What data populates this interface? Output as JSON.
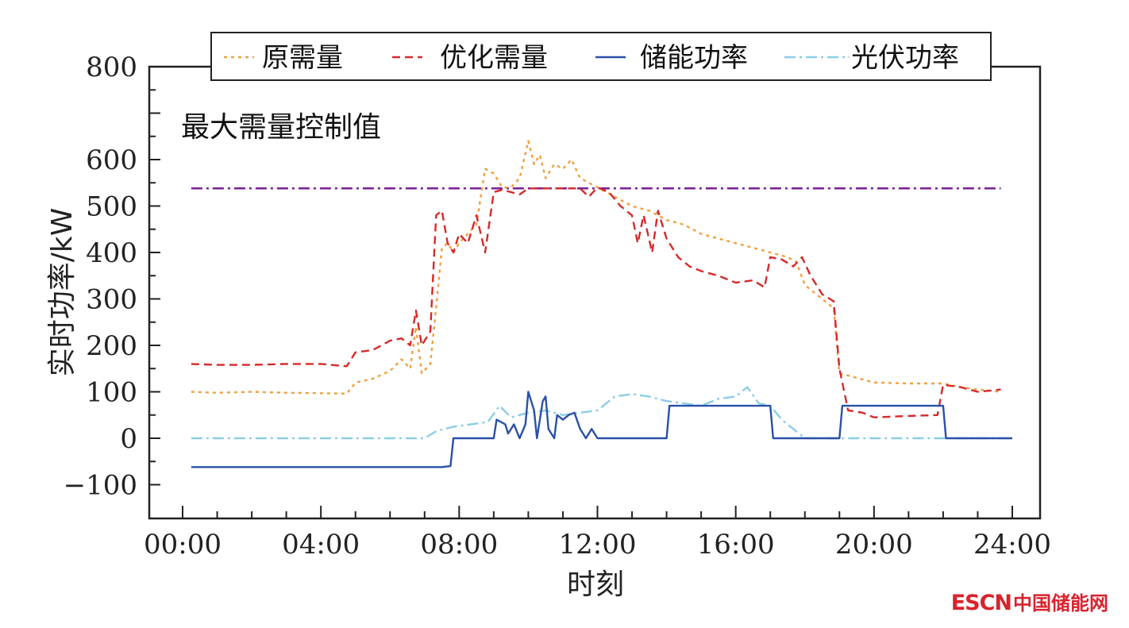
{
  "chart_data": {
    "type": "line",
    "title": "",
    "xlabel": "时刻",
    "ylabel": "实时功率/kW",
    "xlim": [
      "00:00",
      "24:00"
    ],
    "ylim": [
      -150,
      800
    ],
    "x_ticks": [
      "00:00",
      "04:00",
      "08:00",
      "12:00",
      "16:00",
      "20:00",
      "24:00"
    ],
    "y_ticks": [
      "800",
      "600",
      "500",
      "400",
      "300",
      "200",
      "100",
      "0",
      "−100"
    ],
    "grid": false,
    "legend": {
      "placement": "top",
      "boxed": true
    },
    "annotation": {
      "text": "最大需量控制值",
      "value": 538
    },
    "series": [
      {
        "name": "原需量",
        "color": "#f0a040",
        "dash": "4,5",
        "points": [
          [
            "00:15",
            100
          ],
          [
            "01:00",
            98
          ],
          [
            "02:00",
            100
          ],
          [
            "03:00",
            98
          ],
          [
            "04:00",
            97
          ],
          [
            "04:45",
            96
          ],
          [
            "05:00",
            120
          ],
          [
            "05:30",
            128
          ],
          [
            "06:00",
            145
          ],
          [
            "06:20",
            170
          ],
          [
            "06:35",
            150
          ],
          [
            "06:45",
            240
          ],
          [
            "06:55",
            140
          ],
          [
            "07:10",
            160
          ],
          [
            "07:20",
            280
          ],
          [
            "07:30",
            410
          ],
          [
            "07:40",
            420
          ],
          [
            "07:50",
            400
          ],
          [
            "08:00",
            420
          ],
          [
            "08:15",
            440
          ],
          [
            "08:30",
            460
          ],
          [
            "08:45",
            580
          ],
          [
            "09:00",
            570
          ],
          [
            "09:15",
            540
          ],
          [
            "09:30",
            540
          ],
          [
            "09:45",
            560
          ],
          [
            "10:00",
            640
          ],
          [
            "10:10",
            590
          ],
          [
            "10:20",
            610
          ],
          [
            "10:30",
            560
          ],
          [
            "10:45",
            590
          ],
          [
            "11:00",
            580
          ],
          [
            "11:15",
            600
          ],
          [
            "11:30",
            560
          ],
          [
            "11:45",
            550
          ],
          [
            "12:00",
            540
          ],
          [
            "12:30",
            520
          ],
          [
            "13:00",
            500
          ],
          [
            "13:30",
            490
          ],
          [
            "14:00",
            470
          ],
          [
            "14:30",
            460
          ],
          [
            "15:00",
            440
          ],
          [
            "15:30",
            430
          ],
          [
            "16:00",
            420
          ],
          [
            "16:30",
            410
          ],
          [
            "17:00",
            400
          ],
          [
            "17:30",
            390
          ],
          [
            "17:45",
            380
          ],
          [
            "18:00",
            330
          ],
          [
            "18:30",
            300
          ],
          [
            "18:50",
            280
          ],
          [
            "19:00",
            140
          ],
          [
            "19:30",
            130
          ],
          [
            "20:00",
            120
          ],
          [
            "21:00",
            118
          ],
          [
            "22:00",
            118
          ],
          [
            "22:30",
            110
          ],
          [
            "23:00",
            105
          ],
          [
            "23:40",
            100
          ]
        ]
      },
      {
        "name": "优化需量",
        "color": "#d42a2a",
        "dash": "10,6",
        "points": [
          [
            "00:15",
            160
          ],
          [
            "01:00",
            158
          ],
          [
            "02:00",
            158
          ],
          [
            "03:00",
            160
          ],
          [
            "04:00",
            160
          ],
          [
            "04:45",
            155
          ],
          [
            "05:00",
            185
          ],
          [
            "05:30",
            190
          ],
          [
            "06:00",
            210
          ],
          [
            "06:20",
            215
          ],
          [
            "06:35",
            200
          ],
          [
            "06:45",
            275
          ],
          [
            "06:55",
            200
          ],
          [
            "07:10",
            230
          ],
          [
            "07:20",
            480
          ],
          [
            "07:30",
            490
          ],
          [
            "07:40",
            420
          ],
          [
            "07:50",
            400
          ],
          [
            "08:00",
            440
          ],
          [
            "08:15",
            420
          ],
          [
            "08:30",
            480
          ],
          [
            "08:45",
            400
          ],
          [
            "09:00",
            530
          ],
          [
            "09:15",
            535
          ],
          [
            "09:30",
            530
          ],
          [
            "09:45",
            525
          ],
          [
            "10:00",
            538
          ],
          [
            "10:30",
            538
          ],
          [
            "11:00",
            538
          ],
          [
            "11:30",
            538
          ],
          [
            "11:45",
            520
          ],
          [
            "12:00",
            540
          ],
          [
            "12:20",
            530
          ],
          [
            "12:40",
            500
          ],
          [
            "13:00",
            480
          ],
          [
            "13:10",
            420
          ],
          [
            "13:20",
            480
          ],
          [
            "13:35",
            400
          ],
          [
            "13:45",
            490
          ],
          [
            "14:00",
            430
          ],
          [
            "14:20",
            390
          ],
          [
            "14:40",
            370
          ],
          [
            "15:00",
            360
          ],
          [
            "15:30",
            350
          ],
          [
            "16:00",
            335
          ],
          [
            "16:30",
            340
          ],
          [
            "16:50",
            325
          ],
          [
            "17:00",
            390
          ],
          [
            "17:20",
            385
          ],
          [
            "17:40",
            370
          ],
          [
            "17:55",
            390
          ],
          [
            "18:10",
            350
          ],
          [
            "18:30",
            310
          ],
          [
            "18:50",
            295
          ],
          [
            "19:00",
            150
          ],
          [
            "19:15",
            60
          ],
          [
            "19:40",
            55
          ],
          [
            "20:00",
            45
          ],
          [
            "21:00",
            48
          ],
          [
            "21:50",
            50
          ],
          [
            "22:00",
            115
          ],
          [
            "22:30",
            110
          ],
          [
            "23:00",
            100
          ],
          [
            "23:40",
            105
          ]
        ]
      },
      {
        "name": "储能功率",
        "color": "#2a50a8",
        "dash": "",
        "points": [
          [
            "00:15",
            -62
          ],
          [
            "02:00",
            -62
          ],
          [
            "04:00",
            -62
          ],
          [
            "06:00",
            -62
          ],
          [
            "07:30",
            -62
          ],
          [
            "07:45",
            -60
          ],
          [
            "07:50",
            0
          ],
          [
            "08:30",
            0
          ],
          [
            "09:00",
            0
          ],
          [
            "09:05",
            40
          ],
          [
            "09:20",
            30
          ],
          [
            "09:25",
            10
          ],
          [
            "09:35",
            30
          ],
          [
            "09:45",
            0
          ],
          [
            "09:55",
            30
          ],
          [
            "10:00",
            100
          ],
          [
            "10:10",
            60
          ],
          [
            "10:15",
            0
          ],
          [
            "10:25",
            80
          ],
          [
            "10:30",
            90
          ],
          [
            "10:35",
            20
          ],
          [
            "10:45",
            0
          ],
          [
            "10:50",
            50
          ],
          [
            "11:00",
            40
          ],
          [
            "11:10",
            50
          ],
          [
            "11:20",
            55
          ],
          [
            "11:30",
            20
          ],
          [
            "11:40",
            0
          ],
          [
            "11:50",
            20
          ],
          [
            "12:00",
            0
          ],
          [
            "13:00",
            0
          ],
          [
            "14:00",
            0
          ],
          [
            "14:05",
            70
          ],
          [
            "15:00",
            70
          ],
          [
            "16:00",
            70
          ],
          [
            "17:00",
            70
          ],
          [
            "17:05",
            0
          ],
          [
            "18:00",
            0
          ],
          [
            "19:00",
            0
          ],
          [
            "19:05",
            70
          ],
          [
            "20:00",
            70
          ],
          [
            "21:00",
            70
          ],
          [
            "22:00",
            70
          ],
          [
            "22:05",
            0
          ],
          [
            "23:00",
            0
          ],
          [
            "24:00",
            0
          ]
        ]
      },
      {
        "name": "光伏功率",
        "color": "#8ccde6",
        "dash": "14,5,3,5",
        "points": [
          [
            "00:15",
            0
          ],
          [
            "02:00",
            0
          ],
          [
            "04:00",
            0
          ],
          [
            "06:00",
            0
          ],
          [
            "07:00",
            0
          ],
          [
            "07:20",
            15
          ],
          [
            "07:50",
            25
          ],
          [
            "08:20",
            30
          ],
          [
            "08:50",
            35
          ],
          [
            "09:10",
            70
          ],
          [
            "09:30",
            45
          ],
          [
            "10:00",
            55
          ],
          [
            "10:30",
            60
          ],
          [
            "11:00",
            50
          ],
          [
            "11:30",
            55
          ],
          [
            "12:00",
            60
          ],
          [
            "12:30",
            90
          ],
          [
            "13:00",
            95
          ],
          [
            "13:30",
            90
          ],
          [
            "14:00",
            80
          ],
          [
            "14:30",
            75
          ],
          [
            "15:00",
            70
          ],
          [
            "15:30",
            85
          ],
          [
            "16:00",
            90
          ],
          [
            "16:20",
            110
          ],
          [
            "16:40",
            75
          ],
          [
            "17:00",
            70
          ],
          [
            "17:20",
            40
          ],
          [
            "17:40",
            20
          ],
          [
            "18:00",
            0
          ],
          [
            "19:00",
            0
          ],
          [
            "20:00",
            0
          ],
          [
            "22:00",
            0
          ],
          [
            "24:00",
            0
          ]
        ]
      },
      {
        "name": "",
        "color": "#7a1e96",
        "dash": "14,5,3,5",
        "role": "max-demand-line",
        "points": [
          [
            "00:15",
            538
          ],
          [
            "23:40",
            538
          ]
        ]
      }
    ]
  },
  "watermark": {
    "brand": "ESCN",
    "cn": "中国储能网"
  }
}
